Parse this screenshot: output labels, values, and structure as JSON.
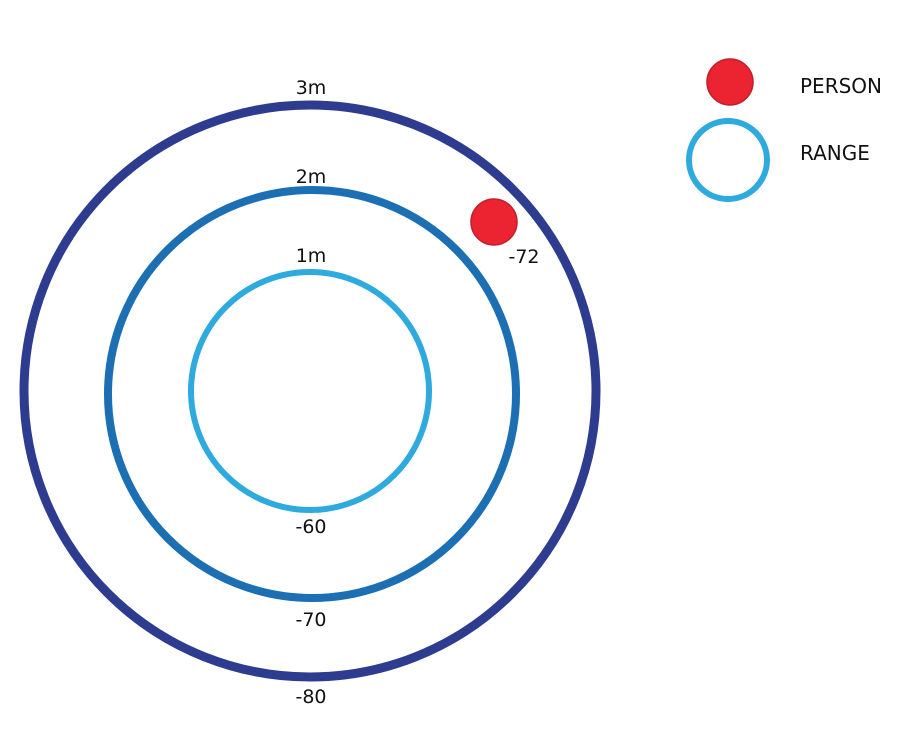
{
  "rings": [
    {
      "id": "inner",
      "distance_label": "1m",
      "rssi_label": "-60",
      "color": "#2eaadf"
    },
    {
      "id": "middle",
      "distance_label": "2m",
      "rssi_label": "-70",
      "color": "#1c6fb2"
    },
    {
      "id": "outer",
      "distance_label": "3m",
      "rssi_label": "-80",
      "color": "#2d3c8e"
    }
  ],
  "person": {
    "rssi_label": "-72",
    "color": "#ec2330",
    "stroke": "#c11f2b"
  },
  "legend": {
    "person_label": "PERSON",
    "range_label": "RANGE",
    "person_color": "#ec2330",
    "range_color": "#2eaadf"
  }
}
